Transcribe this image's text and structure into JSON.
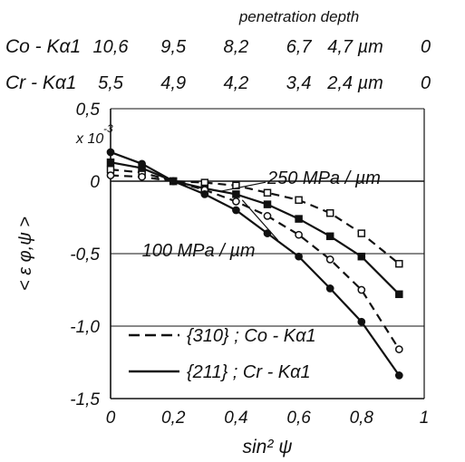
{
  "chart_data": {
    "type": "line",
    "title": "",
    "xlabel": "sin² ψ",
    "ylabel": "< ε φ,ψ >",
    "y_multiplier_label": "x 10",
    "y_multiplier_exponent": "-3",
    "xlim": [
      0,
      1
    ],
    "ylim": [
      -1.5,
      0.5
    ],
    "x_ticks": [
      0,
      0.2,
      0.4,
      0.6,
      0.8,
      1
    ],
    "x_tick_labels": [
      "0",
      "0,2",
      "0,4",
      "0,6",
      "0,8",
      "1"
    ],
    "y_ticks": [
      0.5,
      0,
      -0.5,
      -1.0,
      -1.5
    ],
    "y_tick_labels": [
      "0,5",
      "0",
      "-0,5",
      "-1,0",
      "-1,5"
    ],
    "grid": "horizontal",
    "top_axis": {
      "title": "penetration depth",
      "rows": [
        {
          "label": "Co - Kα1",
          "positions": [
            0,
            0.2,
            0.4,
            0.6,
            0.8,
            1.0
          ],
          "values": [
            "10,6",
            "9,5",
            "8,2",
            "6,7",
            "4,7 µm",
            "0"
          ]
        },
        {
          "label": "Cr - Kα1",
          "positions": [
            0,
            0.2,
            0.4,
            0.6,
            0.8,
            1.0
          ],
          "values": [
            "5,5",
            "4,9",
            "4,2",
            "3,4",
            "2,4 µm",
            "0"
          ]
        }
      ]
    },
    "annotations": [
      {
        "text": "250 MPa / µm",
        "at": [
          0.5,
          -0.02
        ],
        "points_to": [
          0.35,
          -0.07
        ]
      },
      {
        "text": "100 MPa / µm",
        "at": [
          0.1,
          -0.52
        ],
        "points_to": [
          0.42,
          -0.13
        ]
      }
    ],
    "legend": {
      "placement": "bottom-left",
      "entries": [
        {
          "label": "{310} ; Co - Kα1",
          "style": "dashed"
        },
        {
          "label": "{211} ; Cr - Kα1",
          "style": "solid"
        }
      ]
    },
    "series": [
      {
        "style": "dashed",
        "marker": "open-square",
        "x": [
          0,
          0.1,
          0.2,
          0.3,
          0.4,
          0.5,
          0.6,
          0.7,
          0.8,
          0.92
        ],
        "y": [
          0.08,
          0.06,
          0.0,
          -0.01,
          -0.03,
          -0.08,
          -0.13,
          -0.22,
          -0.36,
          -0.57
        ]
      },
      {
        "style": "solid",
        "marker": "filled-square",
        "x": [
          0,
          0.1,
          0.2,
          0.3,
          0.4,
          0.5,
          0.6,
          0.7,
          0.8,
          0.92
        ],
        "y": [
          0.13,
          0.09,
          0.0,
          -0.05,
          -0.09,
          -0.16,
          -0.26,
          -0.38,
          -0.52,
          -0.78
        ]
      },
      {
        "style": "dashed",
        "marker": "open-circle",
        "x": [
          0,
          0.1,
          0.2,
          0.3,
          0.4,
          0.5,
          0.6,
          0.7,
          0.8,
          0.92
        ],
        "y": [
          0.04,
          0.03,
          0.0,
          -0.06,
          -0.14,
          -0.24,
          -0.37,
          -0.54,
          -0.75,
          -1.16
        ]
      },
      {
        "style": "solid",
        "marker": "filled-circle",
        "x": [
          0,
          0.1,
          0.2,
          0.3,
          0.4,
          0.5,
          0.6,
          0.7,
          0.8,
          0.92
        ],
        "y": [
          0.2,
          0.12,
          0.0,
          -0.09,
          -0.2,
          -0.36,
          -0.52,
          -0.74,
          -0.97,
          -1.34
        ]
      }
    ]
  }
}
